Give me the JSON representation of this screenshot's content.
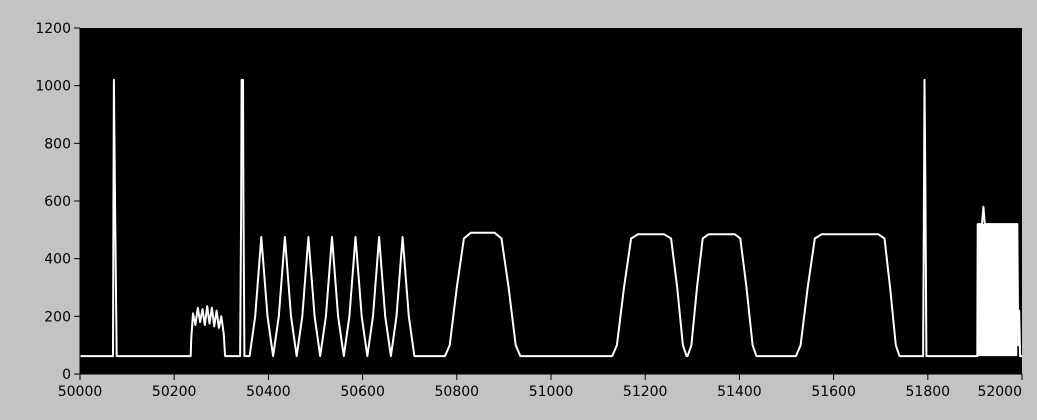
{
  "chart_data": {
    "type": "line",
    "title": "",
    "xlabel": "",
    "ylabel": "",
    "xlim": [
      50000,
      52000
    ],
    "ylim": [
      0,
      1200
    ],
    "x_ticks": [
      50000,
      50200,
      50400,
      50600,
      50800,
      51000,
      51200,
      51400,
      51600,
      51800,
      52000
    ],
    "x_tick_labels": [
      "50000",
      "50200",
      "50400",
      "50600",
      "50800",
      "51000",
      "51200",
      "51400",
      "51600",
      "51800",
      "52000"
    ],
    "y_ticks": [
      0,
      200,
      400,
      600,
      800,
      1000,
      1200
    ],
    "y_tick_labels": [
      "0",
      "200",
      "400",
      "600",
      "800",
      "1000",
      "1200"
    ],
    "grid": false,
    "colors": {
      "frame": "#c3c3c3",
      "plot_background": "#000000",
      "trace": "#ffffff",
      "axis": "#000000"
    },
    "series": [
      {
        "points": [
          [
            50000,
            62
          ],
          [
            50070,
            62
          ],
          [
            50071,
            540
          ],
          [
            50072,
            1020
          ],
          [
            50074,
            640
          ],
          [
            50076,
            340
          ],
          [
            50078,
            62
          ],
          [
            50235,
            62
          ],
          [
            50236,
            120
          ],
          [
            50240,
            210
          ],
          [
            50245,
            170
          ],
          [
            50250,
            230
          ],
          [
            50255,
            180
          ],
          [
            50260,
            225
          ],
          [
            50265,
            170
          ],
          [
            50270,
            235
          ],
          [
            50275,
            175
          ],
          [
            50280,
            230
          ],
          [
            50285,
            165
          ],
          [
            50290,
            220
          ],
          [
            50295,
            160
          ],
          [
            50300,
            200
          ],
          [
            50305,
            140
          ],
          [
            50308,
            62
          ],
          [
            50340,
            62
          ],
          [
            50342,
            540
          ],
          [
            50343,
            1020
          ],
          [
            50346,
            1020
          ],
          [
            50347,
            640
          ],
          [
            50349,
            62
          ],
          [
            50360,
            62
          ],
          [
            50372,
            200
          ],
          [
            50385,
            475
          ],
          [
            50398,
            200
          ],
          [
            50410,
            62
          ],
          [
            50422,
            200
          ],
          [
            50435,
            475
          ],
          [
            50448,
            200
          ],
          [
            50460,
            62
          ],
          [
            50472,
            200
          ],
          [
            50485,
            475
          ],
          [
            50498,
            200
          ],
          [
            50510,
            62
          ],
          [
            50522,
            200
          ],
          [
            50535,
            475
          ],
          [
            50548,
            200
          ],
          [
            50560,
            62
          ],
          [
            50572,
            200
          ],
          [
            50585,
            475
          ],
          [
            50598,
            200
          ],
          [
            50610,
            62
          ],
          [
            50622,
            200
          ],
          [
            50635,
            475
          ],
          [
            50648,
            200
          ],
          [
            50660,
            62
          ],
          [
            50672,
            200
          ],
          [
            50685,
            475
          ],
          [
            50698,
            200
          ],
          [
            50710,
            62
          ],
          [
            50775,
            62
          ],
          [
            50785,
            100
          ],
          [
            50800,
            300
          ],
          [
            50815,
            470
          ],
          [
            50830,
            490
          ],
          [
            50880,
            490
          ],
          [
            50895,
            470
          ],
          [
            50910,
            300
          ],
          [
            50925,
            100
          ],
          [
            50935,
            62
          ],
          [
            51130,
            62
          ],
          [
            51140,
            100
          ],
          [
            51155,
            300
          ],
          [
            51170,
            470
          ],
          [
            51185,
            485
          ],
          [
            51240,
            485
          ],
          [
            51255,
            470
          ],
          [
            51268,
            300
          ],
          [
            51280,
            100
          ],
          [
            51288,
            62
          ],
          [
            51290,
            62
          ],
          [
            51298,
            100
          ],
          [
            51310,
            300
          ],
          [
            51322,
            470
          ],
          [
            51335,
            485
          ],
          [
            51390,
            485
          ],
          [
            51402,
            470
          ],
          [
            51415,
            300
          ],
          [
            51428,
            100
          ],
          [
            51436,
            62
          ],
          [
            51520,
            62
          ],
          [
            51530,
            100
          ],
          [
            51545,
            300
          ],
          [
            51560,
            470
          ],
          [
            51575,
            485
          ],
          [
            51695,
            485
          ],
          [
            51708,
            470
          ],
          [
            51720,
            300
          ],
          [
            51732,
            100
          ],
          [
            51740,
            62
          ],
          [
            51790,
            62
          ],
          [
            51792,
            640
          ],
          [
            51793,
            1020
          ],
          [
            51795,
            640
          ],
          [
            51797,
            62
          ],
          [
            51905,
            62
          ],
          [
            51906,
            520
          ],
          [
            51915,
            520
          ],
          [
            51918,
            580
          ],
          [
            51921,
            520
          ],
          [
            51990,
            520
          ],
          [
            51992,
            100
          ],
          [
            51994,
            220
          ],
          [
            51996,
            62
          ],
          [
            52000,
            62
          ]
        ]
      }
    ]
  }
}
